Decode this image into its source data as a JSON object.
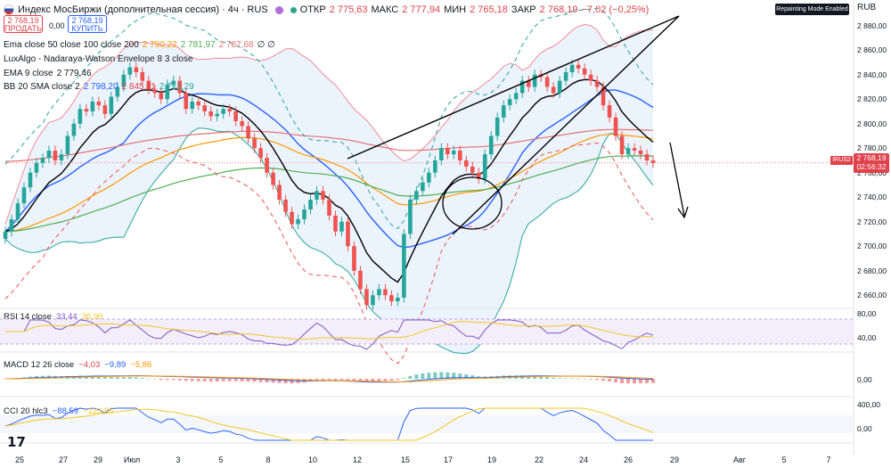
{
  "header": {
    "symbol_title": "Индекс МосБиржи (дополнительная сессия) · 4ч · RUS",
    "open_label": "ОТКР",
    "open_value": "2 775,63",
    "high_label": "МАКС",
    "high_value": "2 777,94",
    "low_label": "МИН",
    "low_value": "2 765,18",
    "close_label": "ЗАКР",
    "close_value": "2 768,19",
    "change_value": "−7,02 (−0,25%)"
  },
  "trade": {
    "sell_price": "2 768,19",
    "sell_label": "ПРОДАТЬ",
    "spread": "0,00",
    "buy_price": "2 768,19",
    "buy_label": "КУПИТЬ"
  },
  "indicators": {
    "ema_multi": {
      "name": "Ema close 50 close 100 close 200",
      "v1": "2 790,22",
      "v2": "2 781,97",
      "v3": "2 787,68",
      "extra": "∅ ∅"
    },
    "luxalgo": {
      "name": "LuxAlgo - Nadaraya-Watson Envelope 8 3 close"
    },
    "ema9": {
      "name": "EMA 9 close",
      "v1": "2 779,46"
    },
    "bb": {
      "name": "BB 20 SMA close 2",
      "v1": "2 798,20",
      "v2": "2 845,11",
      "v3": "2 751,29"
    }
  },
  "badges": {
    "repainting": "Repainting Mode Enabled",
    "currency": "RUB"
  },
  "price_axis": [
    "2 880,00",
    "2 860,00",
    "2 840,00",
    "2 820,00",
    "2 800,00",
    "2 780,00",
    "2 760,00",
    "2 740,00",
    "2 720,00",
    "2 700,00",
    "2 680,00",
    "2 660,00"
  ],
  "price_tag": {
    "symbol": "IRUS2",
    "price": "2 768,19",
    "countdown": "02:56:32"
  },
  "rsi": {
    "title": "RSI 14 close",
    "v1": "33,44",
    "v2": "36,90",
    "axis": [
      "80,00",
      "40,00"
    ]
  },
  "macd": {
    "title": "MACD 12 26 close",
    "v1": "−4,03",
    "v2": "−9,89",
    "v3": "−5,86",
    "axis": [
      "0,00"
    ]
  },
  "cci": {
    "title": "CCI 20 hlc3",
    "v1": "−88,59",
    "v2": "−123,85",
    "axis": [
      "400,00",
      "0,00"
    ]
  },
  "time_axis": [
    "25",
    "27",
    "29",
    "Июл",
    "3",
    "5",
    "8",
    "10",
    "12",
    "15",
    "17",
    "19",
    "22",
    "24",
    "26",
    "29",
    "Авг",
    "5",
    "7"
  ],
  "colors": {
    "up": "#26a69a",
    "down": "#ef5350",
    "ema9": "#000000",
    "ema50": "#ff9800",
    "ema100": "#4caf50",
    "ema200": "#e57373",
    "bbband": "#2962ff",
    "envelope": "#26a69a",
    "rsi": "#7e57c2",
    "macd": "#2962ff"
  },
  "chart_data": {
    "type": "candlestick",
    "title": "Индекс МосБиржи (дополнительная сессия) · 4ч",
    "ylim": [
      2650,
      2890
    ],
    "values": [
      2712,
      2722,
      2735,
      2748,
      2760,
      2768,
      2772,
      2778,
      2770,
      2775,
      2790,
      2800,
      2812,
      2810,
      2818,
      2815,
      2808,
      2822,
      2830,
      2840,
      2846,
      2842,
      2835,
      2828,
      2825,
      2820,
      2832,
      2835,
      2825,
      2812,
      2818,
      2815,
      2810,
      2806,
      2808,
      2812,
      2810,
      2802,
      2798,
      2788,
      2780,
      2772,
      2760,
      2750,
      2738,
      2728,
      2718,
      2722,
      2730,
      2738,
      2745,
      2738,
      2725,
      2712,
      2720,
      2700,
      2680,
      2665,
      2652,
      2660,
      2665,
      2660,
      2655,
      2658,
      2710,
      2738,
      2745,
      2752,
      2760,
      2770,
      2780,
      2775,
      2778,
      2770,
      2765,
      2760,
      2755,
      2775,
      2790,
      2805,
      2815,
      2820,
      2825,
      2835,
      2830,
      2840,
      2838,
      2830,
      2825,
      2835,
      2842,
      2848,
      2845,
      2840,
      2835,
      2830,
      2815,
      2805,
      2790,
      2775,
      2780,
      2778,
      2775,
      2770,
      2768
    ]
  }
}
